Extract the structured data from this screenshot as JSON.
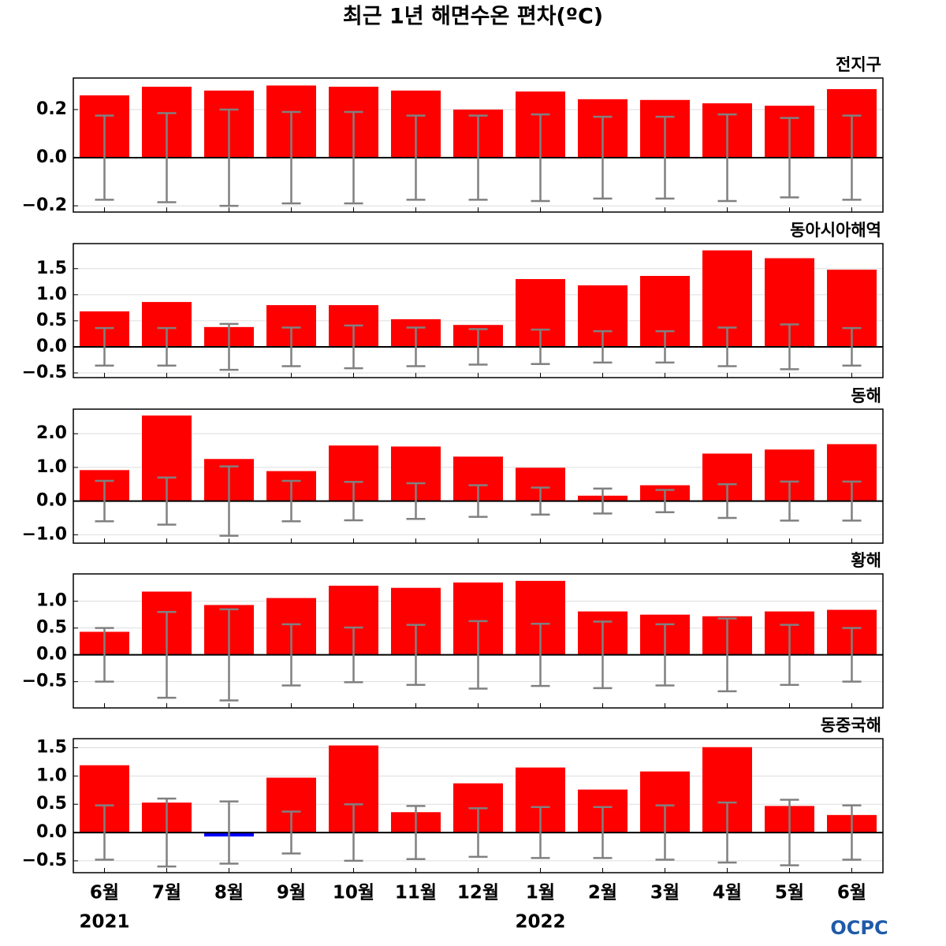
{
  "title": "최근 1년 해면수온 편차(ºC)",
  "categories": [
    "6월",
    "7월",
    "8월",
    "9월",
    "10월",
    "11월",
    "12월",
    "1월",
    "2월",
    "3월",
    "4월",
    "5월",
    "6월"
  ],
  "years": [
    "2021",
    null,
    null,
    null,
    null,
    null,
    null,
    "2022",
    null,
    null,
    null,
    null,
    null
  ],
  "logo": "OCPC",
  "chart_data": [
    {
      "type": "bar",
      "title": "전지구",
      "color": "#ff0000",
      "negative_color": "#0000ff",
      "error_color": "#808080",
      "grid": true,
      "values": [
        0.259,
        0.295,
        0.279,
        0.3,
        0.295,
        0.279,
        0.2,
        0.275,
        0.243,
        0.24,
        0.226,
        0.216,
        0.285
      ],
      "errors": [
        0.175,
        0.185,
        0.2,
        0.19,
        0.19,
        0.175,
        0.175,
        0.18,
        0.17,
        0.17,
        0.18,
        0.165,
        0.175
      ],
      "ylim": [
        -0.226,
        0.331
      ],
      "yticks": [
        {
          "value": -0.2,
          "label": "−0.2"
        },
        {
          "value": 0,
          "label": "0.0"
        },
        0.2
      ]
    },
    {
      "type": "bar",
      "title": "동아시아해역",
      "color": "#ff0000",
      "negative_color": "#0000ff",
      "error_color": "#808080",
      "grid": true,
      "values": [
        0.68,
        0.86,
        0.38,
        0.8,
        0.8,
        0.53,
        0.42,
        1.3,
        1.18,
        1.36,
        1.85,
        1.7,
        1.48
      ],
      "errors": [
        0.36,
        0.36,
        0.44,
        0.37,
        0.41,
        0.37,
        0.34,
        0.33,
        0.3,
        0.3,
        0.37,
        0.43,
        0.36
      ],
      "ylim": [
        -0.59,
        1.98
      ],
      "yticks": [
        {
          "value": -0.5,
          "label": "−0.5"
        },
        {
          "value": 0,
          "label": "0.0"
        },
        0.5,
        {
          "value": 1,
          "label": "1.0"
        },
        1.5
      ]
    },
    {
      "type": "bar",
      "title": "동해",
      "color": "#ff0000",
      "negative_color": "#0000ff",
      "error_color": "#808080",
      "grid": true,
      "values": [
        0.92,
        2.54,
        1.25,
        0.89,
        1.65,
        1.62,
        1.32,
        0.99,
        0.16,
        0.47,
        1.41,
        1.53,
        1.69
      ],
      "errors": [
        0.6,
        0.7,
        1.03,
        0.6,
        0.57,
        0.53,
        0.47,
        0.4,
        0.37,
        0.33,
        0.5,
        0.58,
        0.58
      ],
      "ylim": [
        -1.25,
        2.73
      ],
      "yticks": [
        {
          "value": -1,
          "label": "−1.0"
        },
        {
          "value": 0,
          "label": "0.0"
        },
        {
          "value": 1,
          "label": "1.0"
        },
        {
          "value": 2,
          "label": "2.0"
        }
      ]
    },
    {
      "type": "bar",
      "title": "황해",
      "color": "#ff0000",
      "negative_color": "#0000ff",
      "error_color": "#808080",
      "grid": true,
      "values": [
        0.43,
        1.18,
        0.93,
        1.06,
        1.29,
        1.25,
        1.35,
        1.38,
        0.81,
        0.75,
        0.72,
        0.81,
        0.84
      ],
      "errors": [
        0.5,
        0.8,
        0.85,
        0.57,
        0.51,
        0.56,
        0.63,
        0.58,
        0.62,
        0.57,
        0.68,
        0.56,
        0.5
      ],
      "ylim": [
        -0.99,
        1.51
      ],
      "yticks": [
        {
          "value": -0.5,
          "label": "−0.5"
        },
        {
          "value": 0,
          "label": "0.0"
        },
        0.5,
        {
          "value": 1,
          "label": "1.0"
        }
      ]
    },
    {
      "type": "bar",
      "title": "동중국해",
      "color": "#ff0000",
      "negative_color": "#0000ff",
      "error_color": "#808080",
      "grid": true,
      "values": [
        1.19,
        0.53,
        -0.07,
        0.97,
        1.54,
        0.36,
        0.87,
        1.15,
        0.76,
        1.08,
        1.51,
        0.47,
        0.31
      ],
      "errors": [
        0.48,
        0.6,
        0.55,
        0.37,
        0.5,
        0.47,
        0.43,
        0.45,
        0.45,
        0.48,
        0.53,
        0.58,
        0.48
      ],
      "ylim": [
        -0.71,
        1.66
      ],
      "yticks": [
        {
          "value": -0.5,
          "label": "−0.5"
        },
        {
          "value": 0,
          "label": "0.0"
        },
        0.5,
        {
          "value": 1,
          "label": "1.0"
        },
        1.5
      ]
    }
  ]
}
